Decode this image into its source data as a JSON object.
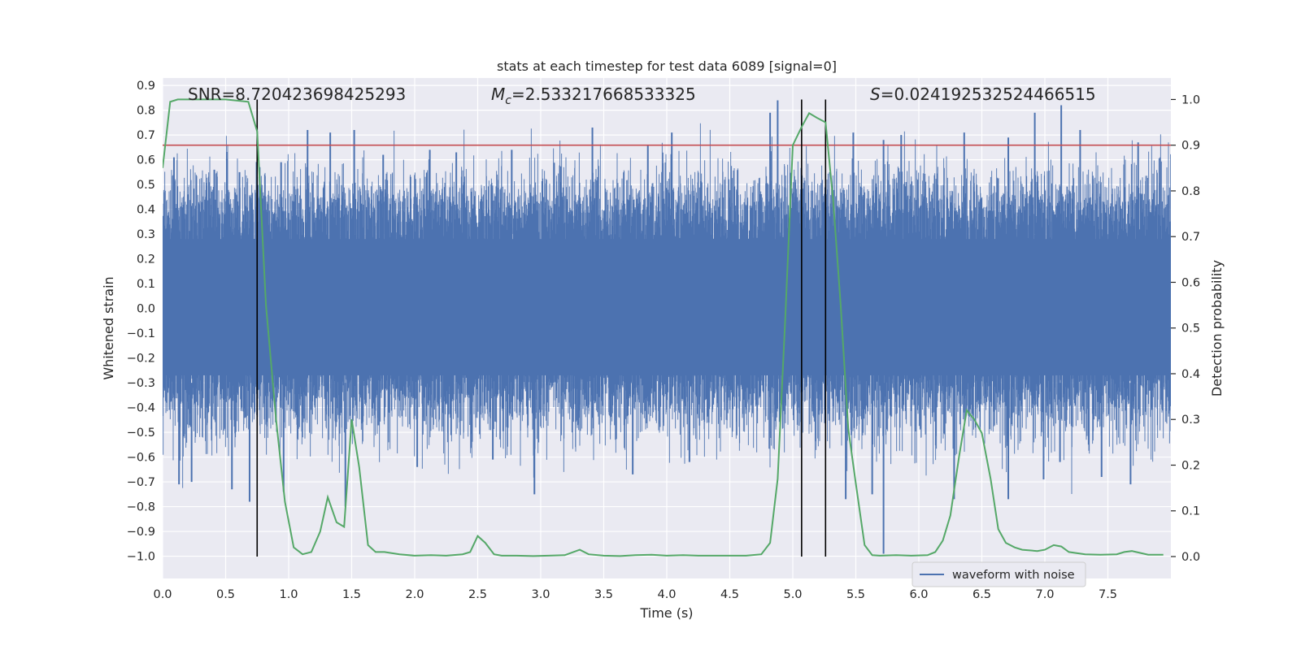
{
  "chart_data": {
    "type": "line",
    "title": "stats at each timestep for test data 6089 [signal=0]",
    "xlabel": "Time (s)",
    "ylabel_left": "Whitened strain",
    "ylabel_right": "Detection probability",
    "xlim": [
      0.0,
      8.0
    ],
    "ylim_left": [
      -1.09,
      0.93
    ],
    "ylim_right": [
      -0.048,
      1.047
    ],
    "xticks": [
      0.0,
      0.5,
      1.0,
      1.5,
      2.0,
      2.5,
      3.0,
      3.5,
      4.0,
      4.5,
      5.0,
      5.5,
      6.0,
      6.5,
      7.0,
      7.5
    ],
    "xtick_labels": [
      "0.0",
      "0.5",
      "1.0",
      "1.5",
      "2.0",
      "2.5",
      "3.0",
      "3.5",
      "4.0",
      "4.5",
      "5.0",
      "5.5",
      "6.0",
      "6.5",
      "7.0",
      "7.5"
    ],
    "yticks_left": [
      0.9,
      0.8,
      0.7,
      0.6,
      0.5,
      0.4,
      0.3,
      0.2,
      0.1,
      0.0,
      -0.1,
      -0.2,
      -0.3,
      -0.4,
      -0.5,
      -0.6,
      -0.7,
      -0.8,
      -0.9,
      -1.0
    ],
    "ytick_labels_left": [
      "0.9",
      "0.8",
      "0.7",
      "0.6",
      "0.5",
      "0.4",
      "0.3",
      "0.2",
      "0.1",
      "0.0",
      "−0.1",
      "−0.2",
      "−0.3",
      "−0.4",
      "−0.5",
      "−0.6",
      "−0.7",
      "−0.8",
      "−0.9",
      "−1.0"
    ],
    "yticks_right": [
      1.0,
      0.9,
      0.8,
      0.7,
      0.6,
      0.5,
      0.4,
      0.3,
      0.2,
      0.1,
      0.0
    ],
    "ytick_labels_right": [
      "1.0",
      "0.9",
      "0.8",
      "0.7",
      "0.6",
      "0.5",
      "0.4",
      "0.3",
      "0.2",
      "0.1",
      "0.0"
    ],
    "annotations": {
      "snr": "SNR=8.720423698425293",
      "mc_symbol": "M",
      "mc_sub": "c",
      "mc_value": "=2.533217668533325",
      "s_symbol": "S",
      "s_value": "=0.024192532524466515"
    },
    "threshold_line": {
      "axis": "right",
      "y": 0.9,
      "color": "#c44e52"
    },
    "vertical_lines_x": [
      0.75,
      5.07,
      5.26
    ],
    "series": [
      {
        "name": "waveform with noise",
        "axis": "left",
        "color": "#4c72b0",
        "kind": "noise",
        "sample_rate": 2048,
        "typical_range": [
          -0.4,
          0.45
        ],
        "peaks": [
          {
            "x": 0.09,
            "y": 0.61
          },
          {
            "x": 0.41,
            "y": 0.56
          },
          {
            "x": 0.61,
            "y": 0.55
          },
          {
            "x": 0.77,
            "y": 0.57
          },
          {
            "x": 0.94,
            "y": 0.59
          },
          {
            "x": 1.15,
            "y": 0.72
          },
          {
            "x": 1.33,
            "y": 0.71
          },
          {
            "x": 1.52,
            "y": 0.72
          },
          {
            "x": 1.75,
            "y": 0.62
          },
          {
            "x": 2.12,
            "y": 0.64
          },
          {
            "x": 2.33,
            "y": 0.63
          },
          {
            "x": 2.77,
            "y": 0.64
          },
          {
            "x": 3.41,
            "y": 0.73
          },
          {
            "x": 3.85,
            "y": 0.66
          },
          {
            "x": 4.04,
            "y": 0.71
          },
          {
            "x": 4.82,
            "y": 0.79
          },
          {
            "x": 4.88,
            "y": 0.84
          },
          {
            "x": 5.48,
            "y": 0.71
          },
          {
            "x": 5.72,
            "y": 0.68
          },
          {
            "x": 5.86,
            "y": 0.7
          },
          {
            "x": 6.36,
            "y": 0.71
          },
          {
            "x": 6.71,
            "y": 0.69
          },
          {
            "x": 6.92,
            "y": 0.79
          },
          {
            "x": 7.13,
            "y": 0.82
          },
          {
            "x": 7.28,
            "y": 0.72
          },
          {
            "x": 7.74,
            "y": 0.67
          }
        ],
        "troughs": [
          {
            "x": 0.13,
            "y": -0.71
          },
          {
            "x": 0.23,
            "y": -0.7
          },
          {
            "x": 0.55,
            "y": -0.73
          },
          {
            "x": 0.69,
            "y": -0.78
          },
          {
            "x": 0.96,
            "y": -0.74
          },
          {
            "x": 1.45,
            "y": -0.8
          },
          {
            "x": 2.02,
            "y": -0.64
          },
          {
            "x": 2.62,
            "y": -0.61
          },
          {
            "x": 2.95,
            "y": -0.75
          },
          {
            "x": 3.73,
            "y": -0.67
          },
          {
            "x": 4.18,
            "y": -0.62
          },
          {
            "x": 5.42,
            "y": -0.77
          },
          {
            "x": 5.63,
            "y": -0.75
          },
          {
            "x": 5.72,
            "y": -0.99
          },
          {
            "x": 6.28,
            "y": -0.77
          },
          {
            "x": 6.71,
            "y": -0.77
          },
          {
            "x": 6.99,
            "y": -0.69
          },
          {
            "x": 7.12,
            "y": -0.62
          },
          {
            "x": 7.45,
            "y": -0.68
          },
          {
            "x": 7.68,
            "y": -0.71
          }
        ]
      },
      {
        "name": "detection probability",
        "axis": "right",
        "color": "#55a868",
        "x": [
          0.0,
          0.06,
          0.12,
          0.25,
          0.5,
          0.68,
          0.75,
          0.82,
          0.9,
          0.97,
          1.04,
          1.11,
          1.18,
          1.25,
          1.31,
          1.38,
          1.44,
          1.5,
          1.56,
          1.63,
          1.69,
          1.76,
          1.88,
          2.0,
          2.13,
          2.25,
          2.38,
          2.44,
          2.5,
          2.56,
          2.63,
          2.69,
          2.81,
          2.94,
          3.06,
          3.19,
          3.31,
          3.38,
          3.5,
          3.63,
          3.75,
          3.88,
          4.0,
          4.13,
          4.25,
          4.38,
          4.5,
          4.63,
          4.75,
          4.82,
          4.88,
          4.94,
          5.0,
          5.07,
          5.13,
          5.19,
          5.26,
          5.32,
          5.38,
          5.44,
          5.5,
          5.57,
          5.63,
          5.69,
          5.82,
          5.94,
          6.07,
          6.13,
          6.19,
          6.25,
          6.32,
          6.38,
          6.44,
          6.5,
          6.57,
          6.63,
          6.69,
          6.76,
          6.82,
          6.94,
          7.0,
          7.07,
          7.13,
          7.19,
          7.32,
          7.44,
          7.57,
          7.63,
          7.69,
          7.82,
          7.94
        ],
        "y": [
          0.85,
          0.995,
          1.0,
          1.0,
          1.0,
          0.995,
          0.93,
          0.55,
          0.3,
          0.12,
          0.02,
          0.005,
          0.01,
          0.055,
          0.13,
          0.075,
          0.065,
          0.3,
          0.195,
          0.025,
          0.01,
          0.01,
          0.005,
          0.002,
          0.003,
          0.002,
          0.005,
          0.01,
          0.045,
          0.03,
          0.005,
          0.002,
          0.002,
          0.001,
          0.002,
          0.003,
          0.015,
          0.005,
          0.002,
          0.001,
          0.003,
          0.004,
          0.002,
          0.003,
          0.002,
          0.002,
          0.002,
          0.002,
          0.005,
          0.03,
          0.17,
          0.52,
          0.9,
          0.94,
          0.97,
          0.96,
          0.95,
          0.78,
          0.55,
          0.28,
          0.16,
          0.025,
          0.003,
          0.002,
          0.003,
          0.002,
          0.003,
          0.01,
          0.035,
          0.09,
          0.22,
          0.32,
          0.3,
          0.27,
          0.17,
          0.06,
          0.03,
          0.02,
          0.015,
          0.012,
          0.015,
          0.025,
          0.022,
          0.01,
          0.005,
          0.004,
          0.005,
          0.01,
          0.012,
          0.004,
          0.004
        ]
      }
    ],
    "legend": {
      "position": "lower-center-right",
      "entries": [
        "waveform with noise"
      ]
    }
  }
}
